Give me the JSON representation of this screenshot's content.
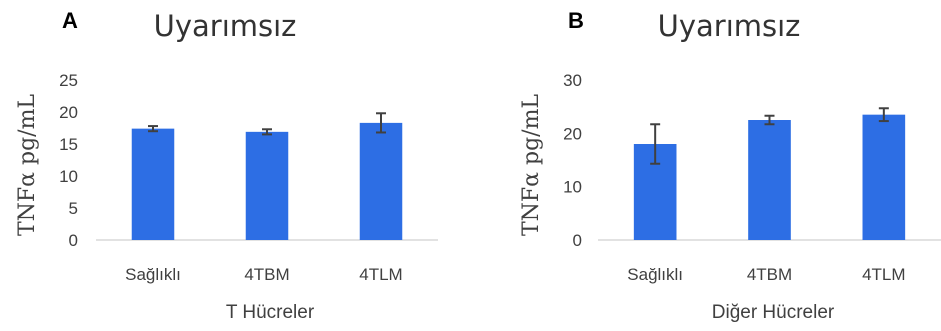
{
  "chart_data": [
    {
      "type": "bar",
      "panel": "A",
      "title": "Uyarımsız",
      "xlabel": "T Hücreler",
      "ylabel": "TNFα pg/mL",
      "categories": [
        "Sağlıklı",
        "4TBM",
        "4TLM"
      ],
      "values": [
        17.4,
        16.9,
        18.3
      ],
      "error": [
        0.4,
        0.4,
        1.5
      ],
      "ylim": [
        0,
        25
      ],
      "yticks": [
        "0",
        "5",
        "10",
        "15",
        "20",
        "25"
      ],
      "bar_color": "#2d6ee4",
      "grid": false,
      "legend": "none"
    },
    {
      "type": "bar",
      "panel": "B",
      "title": "Uyarımsız",
      "xlabel": "Diğer Hücreler",
      "ylabel": "TNFα pg/mL",
      "categories": [
        "Sağlıklı",
        "4TBM",
        "4TLM"
      ],
      "values": [
        18.0,
        22.5,
        23.5
      ],
      "error": [
        3.7,
        0.8,
        1.2
      ],
      "ylim": [
        0,
        30
      ],
      "yticks": [
        "0",
        "10",
        "20",
        "30"
      ],
      "bar_color": "#2d6ee4",
      "grid": false,
      "legend": "none"
    }
  ]
}
